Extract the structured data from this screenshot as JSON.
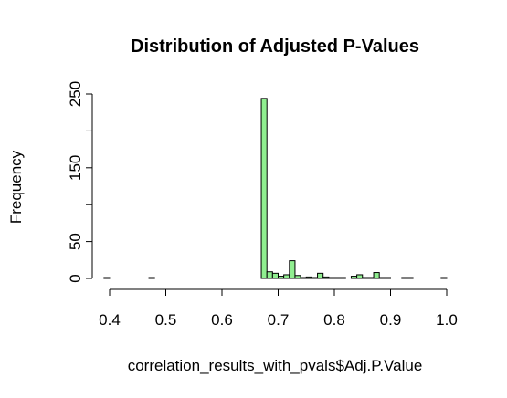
{
  "chart_data": {
    "type": "bar",
    "title": "Distribution of Adjusted P-Values",
    "xlabel": "correlation_results_with_pvals$Adj.P.Value",
    "ylabel": "Frequency",
    "bar_color": "#90EE90",
    "border_color": "#000000",
    "xlim": [
      0.4,
      1.0
    ],
    "ylim": [
      0,
      250
    ],
    "x_ticks": [
      0.4,
      0.5,
      0.6,
      0.7,
      0.8,
      0.9,
      1.0
    ],
    "x_tick_labels": [
      "0.4",
      "0.5",
      "0.6",
      "0.7",
      "0.8",
      "0.9",
      "1.0"
    ],
    "y_ticks": [
      0,
      50,
      100,
      150,
      200,
      250
    ],
    "y_tick_labels": [
      "0",
      "50",
      "",
      "150",
      "",
      "250"
    ],
    "bin_width": 0.01,
    "bins": [
      {
        "start": 0.39,
        "end": 0.4,
        "count": 1
      },
      {
        "start": 0.47,
        "end": 0.48,
        "count": 1
      },
      {
        "start": 0.67,
        "end": 0.68,
        "count": 244
      },
      {
        "start": 0.68,
        "end": 0.69,
        "count": 9
      },
      {
        "start": 0.69,
        "end": 0.7,
        "count": 7
      },
      {
        "start": 0.7,
        "end": 0.71,
        "count": 3
      },
      {
        "start": 0.71,
        "end": 0.72,
        "count": 5
      },
      {
        "start": 0.72,
        "end": 0.73,
        "count": 24
      },
      {
        "start": 0.73,
        "end": 0.74,
        "count": 4
      },
      {
        "start": 0.74,
        "end": 0.75,
        "count": 1
      },
      {
        "start": 0.75,
        "end": 0.76,
        "count": 2
      },
      {
        "start": 0.76,
        "end": 0.77,
        "count": 1
      },
      {
        "start": 0.77,
        "end": 0.78,
        "count": 7
      },
      {
        "start": 0.78,
        "end": 0.79,
        "count": 2
      },
      {
        "start": 0.79,
        "end": 0.8,
        "count": 1
      },
      {
        "start": 0.8,
        "end": 0.81,
        "count": 1
      },
      {
        "start": 0.81,
        "end": 0.82,
        "count": 1
      },
      {
        "start": 0.83,
        "end": 0.84,
        "count": 3
      },
      {
        "start": 0.84,
        "end": 0.85,
        "count": 5
      },
      {
        "start": 0.85,
        "end": 0.86,
        "count": 1
      },
      {
        "start": 0.86,
        "end": 0.87,
        "count": 1
      },
      {
        "start": 0.87,
        "end": 0.88,
        "count": 8
      },
      {
        "start": 0.88,
        "end": 0.89,
        "count": 1
      },
      {
        "start": 0.89,
        "end": 0.9,
        "count": 1
      },
      {
        "start": 0.92,
        "end": 0.93,
        "count": 1
      },
      {
        "start": 0.93,
        "end": 0.94,
        "count": 1
      },
      {
        "start": 0.99,
        "end": 1.0,
        "count": 1
      }
    ]
  }
}
